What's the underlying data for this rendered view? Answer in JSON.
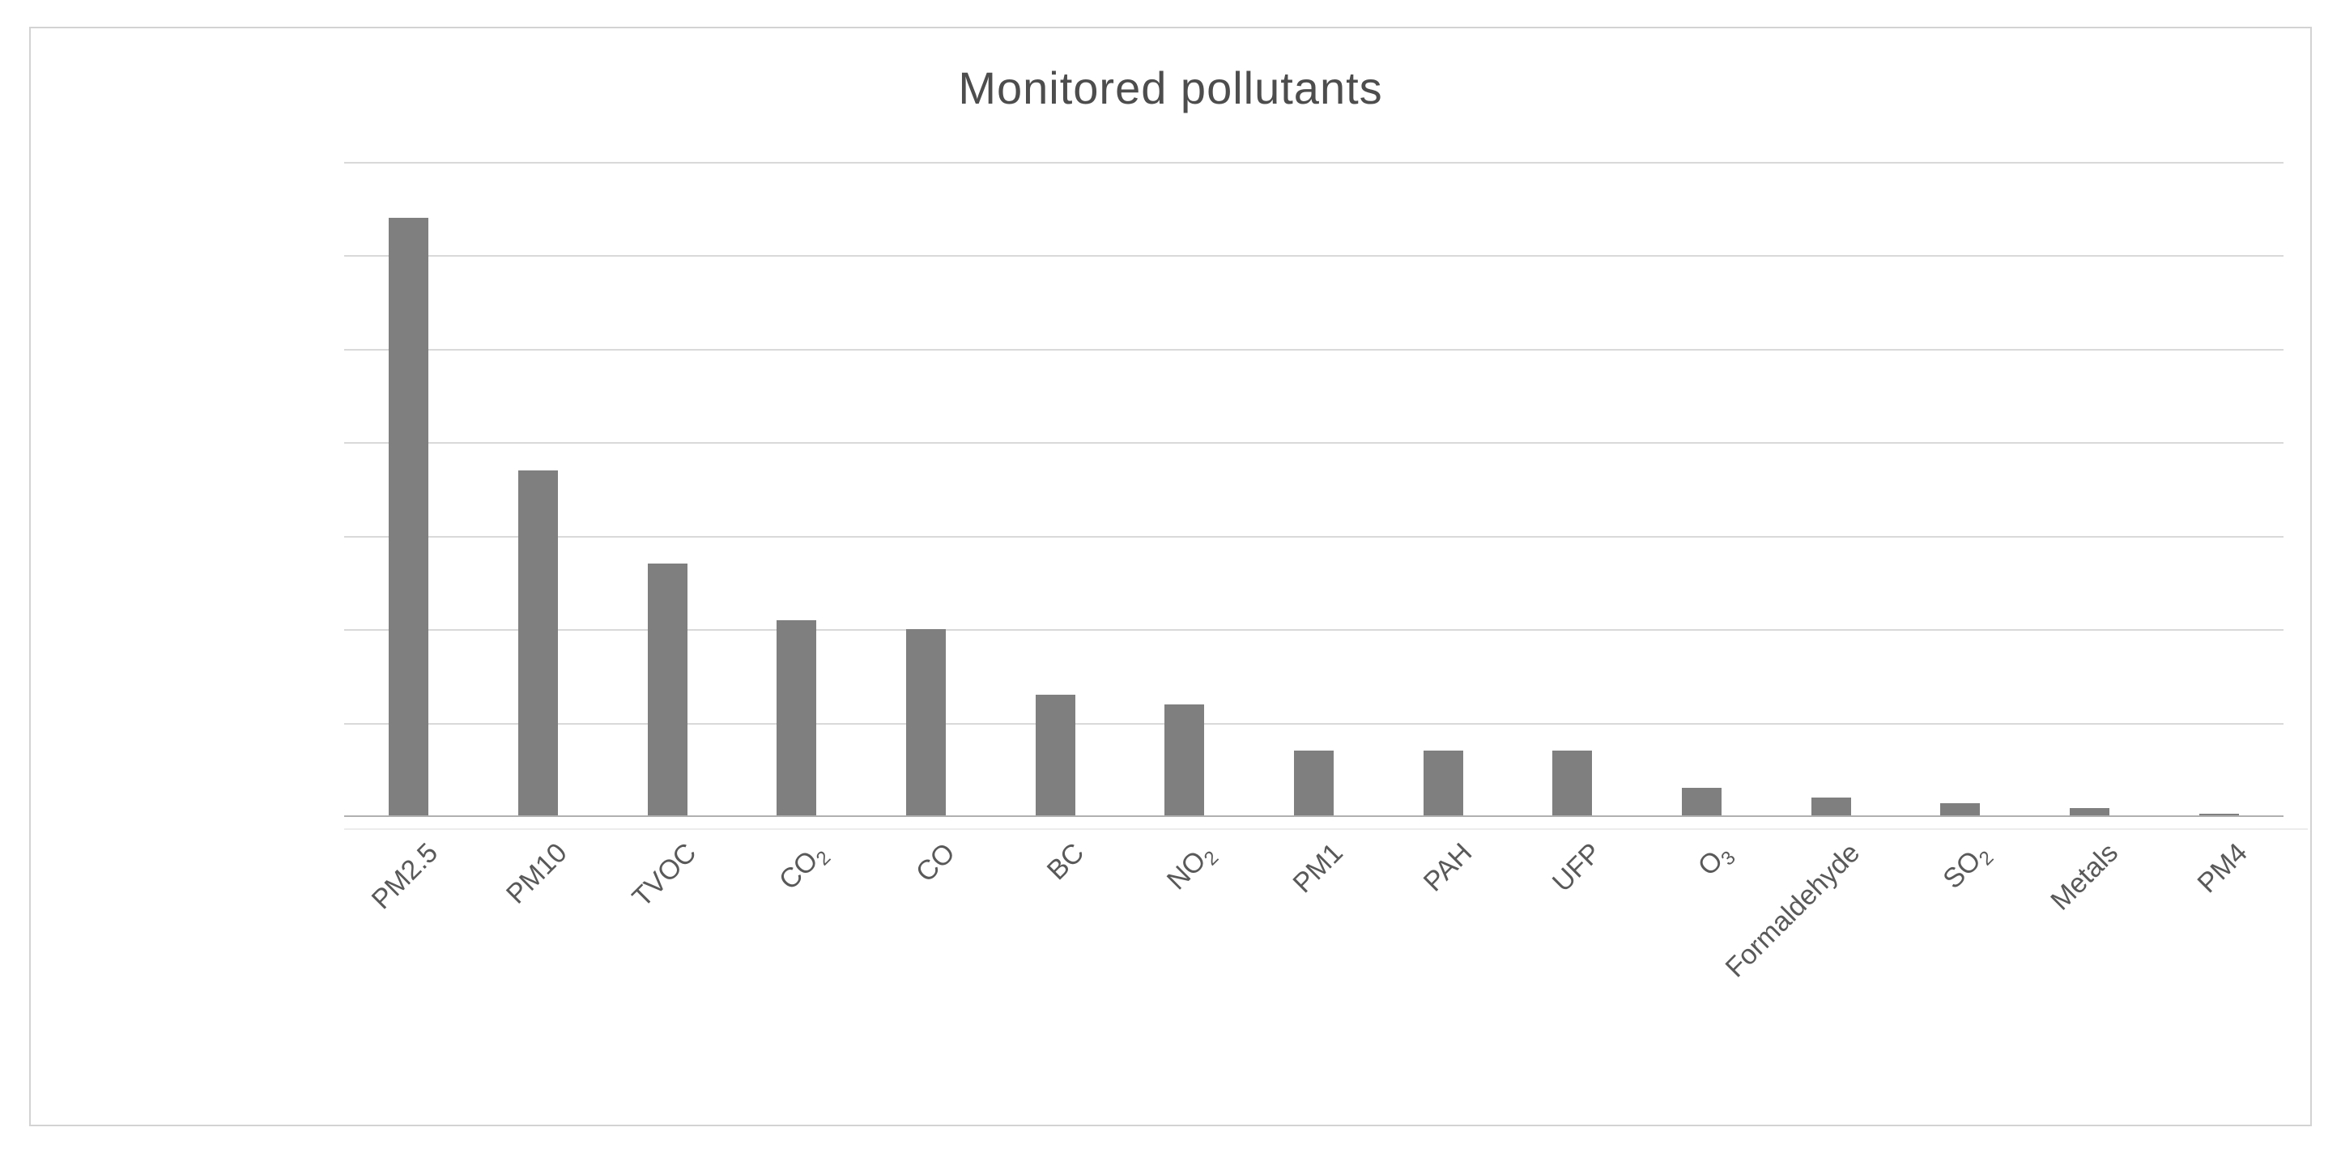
{
  "chart_data": {
    "type": "bar",
    "title": "Monitored pollutants",
    "categories": [
      "PM2.5",
      "PM10",
      "TVOC",
      "CO2",
      "CO",
      "BC",
      "NO2",
      "PM1",
      "PAH",
      "UFP",
      "O3",
      "Formaldehyde",
      "SO2",
      "Metals",
      "PM4"
    ],
    "categories_rich": [
      {
        "text": "PM2.5",
        "sub": ""
      },
      {
        "text": "PM10",
        "sub": ""
      },
      {
        "text": "TVOC",
        "sub": ""
      },
      {
        "text": "CO",
        "sub": "2"
      },
      {
        "text": "CO",
        "sub": ""
      },
      {
        "text": "BC",
        "sub": ""
      },
      {
        "text": "NO",
        "sub": "2"
      },
      {
        "text": "PM1",
        "sub": ""
      },
      {
        "text": "PAH",
        "sub": ""
      },
      {
        "text": "UFP",
        "sub": ""
      },
      {
        "text": "O",
        "sub": "3"
      },
      {
        "text": "Formaldehyde",
        "sub": ""
      },
      {
        "text": "SO",
        "sub": "2"
      },
      {
        "text": "Metals",
        "sub": ""
      },
      {
        "text": "PM4",
        "sub": ""
      }
    ],
    "values": [
      64,
      37,
      27,
      21,
      20,
      13,
      12,
      7,
      7,
      7,
      3,
      2,
      1.4,
      0.9,
      0.3
    ],
    "xlabel": "",
    "ylabel": "",
    "ylim": [
      0,
      70
    ],
    "gridline_step": 10,
    "y_tick_labels_visible": false,
    "legend": "none",
    "grid": "horizontal",
    "colors": {
      "bar": "#7f7f7f",
      "gridline": "#d9d9d9",
      "axis_line": "#b0b0b0",
      "title_text": "#4d4d4d",
      "label_text": "#595959",
      "frame_border": "#d3d3d3",
      "background": "#ffffff"
    }
  }
}
